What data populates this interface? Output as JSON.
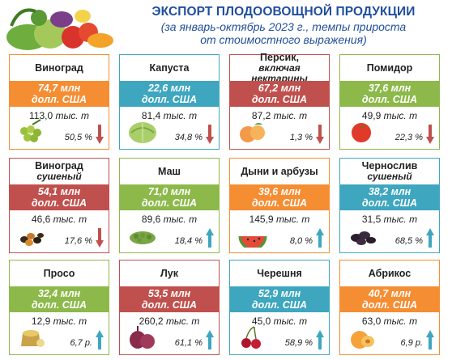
{
  "header": {
    "title": "ЭКСПОРТ ПЛОДООВОЩНОЙ ПРОДУКЦИИ",
    "subtitle_line1": "(за январь-октябрь 2023 г., темпы прироста",
    "subtitle_line2": "от стоимостного выражения)"
  },
  "colors": {
    "orange": "#f58d33",
    "teal": "#3ea6bf",
    "red": "#c0504d",
    "green": "#8cb94a",
    "down_arrow": "#c0504d",
    "up_arrow": "#3ea6bf"
  },
  "cards": [
    {
      "name": "Виноград",
      "sub": "",
      "value": "74,7 млн",
      "unit": "долл. США",
      "volume_num": "113,0",
      "volume_unit": "тыс. т",
      "change": "50,5 %",
      "trend": "down",
      "color": "orange",
      "border": "#f58d33",
      "icon": "grapes-icon"
    },
    {
      "name": "Капуста",
      "sub": "",
      "value": "22,6 млн",
      "unit": "долл. США",
      "volume_num": "81,4",
      "volume_unit": "тыс. т",
      "change": "34,8 %",
      "trend": "down",
      "color": "teal",
      "border": "#3ea6bf",
      "icon": "cabbage-icon"
    },
    {
      "name": "Персик,",
      "sub": "включая нектарины",
      "value": "67,2 млн",
      "unit": "долл. США",
      "volume_num": "87,2",
      "volume_unit": "тыс. т",
      "change": "1,3 %",
      "trend": "down",
      "color": "red",
      "border": "#c0504d",
      "icon": "peach-icon"
    },
    {
      "name": "Помидор",
      "sub": "",
      "value": "37,6 млн",
      "unit": "долл. США",
      "volume_num": "49,9",
      "volume_unit": "тыс. т",
      "change": "22,3 %",
      "trend": "down",
      "color": "green",
      "border": "#8cb94a",
      "icon": "tomato-icon"
    },
    {
      "name": "Виноград",
      "sub": "сушеный",
      "value": "54,1 млн",
      "unit": "долл. США",
      "volume_num": "46,6",
      "volume_unit": "тыс. т",
      "change": "17,6 %",
      "trend": "down",
      "color": "red",
      "border": "#c0504d",
      "icon": "raisins-icon"
    },
    {
      "name": "Маш",
      "sub": "",
      "value": "71,0 млн",
      "unit": "долл. США",
      "volume_num": "89,6",
      "volume_unit": "тыс. т",
      "change": "18,4 %",
      "trend": "up",
      "color": "green",
      "border": "#8cb94a",
      "icon": "mung-bean-icon"
    },
    {
      "name": "Дыни и арбузы",
      "sub": "",
      "value": "39,6 млн",
      "unit": "долл. США",
      "volume_num": "145,9",
      "volume_unit": "тыс. т",
      "change": "8,0 %",
      "trend": "up",
      "color": "orange",
      "border": "#f58d33",
      "icon": "watermelon-icon"
    },
    {
      "name": "Чернослив",
      "sub": "сушеный",
      "value": "38,2 млн",
      "unit": "долл. США",
      "volume_num": "31,5",
      "volume_unit": "тыс. т",
      "change": "68,5 %",
      "trend": "up",
      "color": "teal",
      "border": "#3ea6bf",
      "icon": "prunes-icon"
    },
    {
      "name": "Просо",
      "sub": "",
      "value": "32,4 млн",
      "unit": "долл. США",
      "volume_num": "12,9",
      "volume_unit": "тыс. т",
      "change": "6,7 р.",
      "trend": "up",
      "color": "green",
      "border": "#8cb94a",
      "icon": "millet-icon"
    },
    {
      "name": "Лук",
      "sub": "",
      "value": "53,5 млн",
      "unit": "долл. США",
      "volume_num": "260,2",
      "volume_unit": "тыс. т",
      "change": "61,1 %",
      "trend": "up",
      "color": "red",
      "border": "#c0504d",
      "icon": "onion-icon"
    },
    {
      "name": "Черешня",
      "sub": "",
      "value": "52,9 млн",
      "unit": "долл. США",
      "volume_num": "45,0",
      "volume_unit": "тыс. т",
      "change": "58,9 %",
      "trend": "up",
      "color": "teal",
      "border": "#3ea6bf",
      "icon": "cherry-icon"
    },
    {
      "name": "Абрикос",
      "sub": "",
      "value": "40,7 млн",
      "unit": "долл. США",
      "volume_num": "63,0",
      "volume_unit": "тыс. т",
      "change": "6,9 р.",
      "trend": "up",
      "color": "orange",
      "border": "#f58d33",
      "icon": "apricot-icon"
    }
  ]
}
